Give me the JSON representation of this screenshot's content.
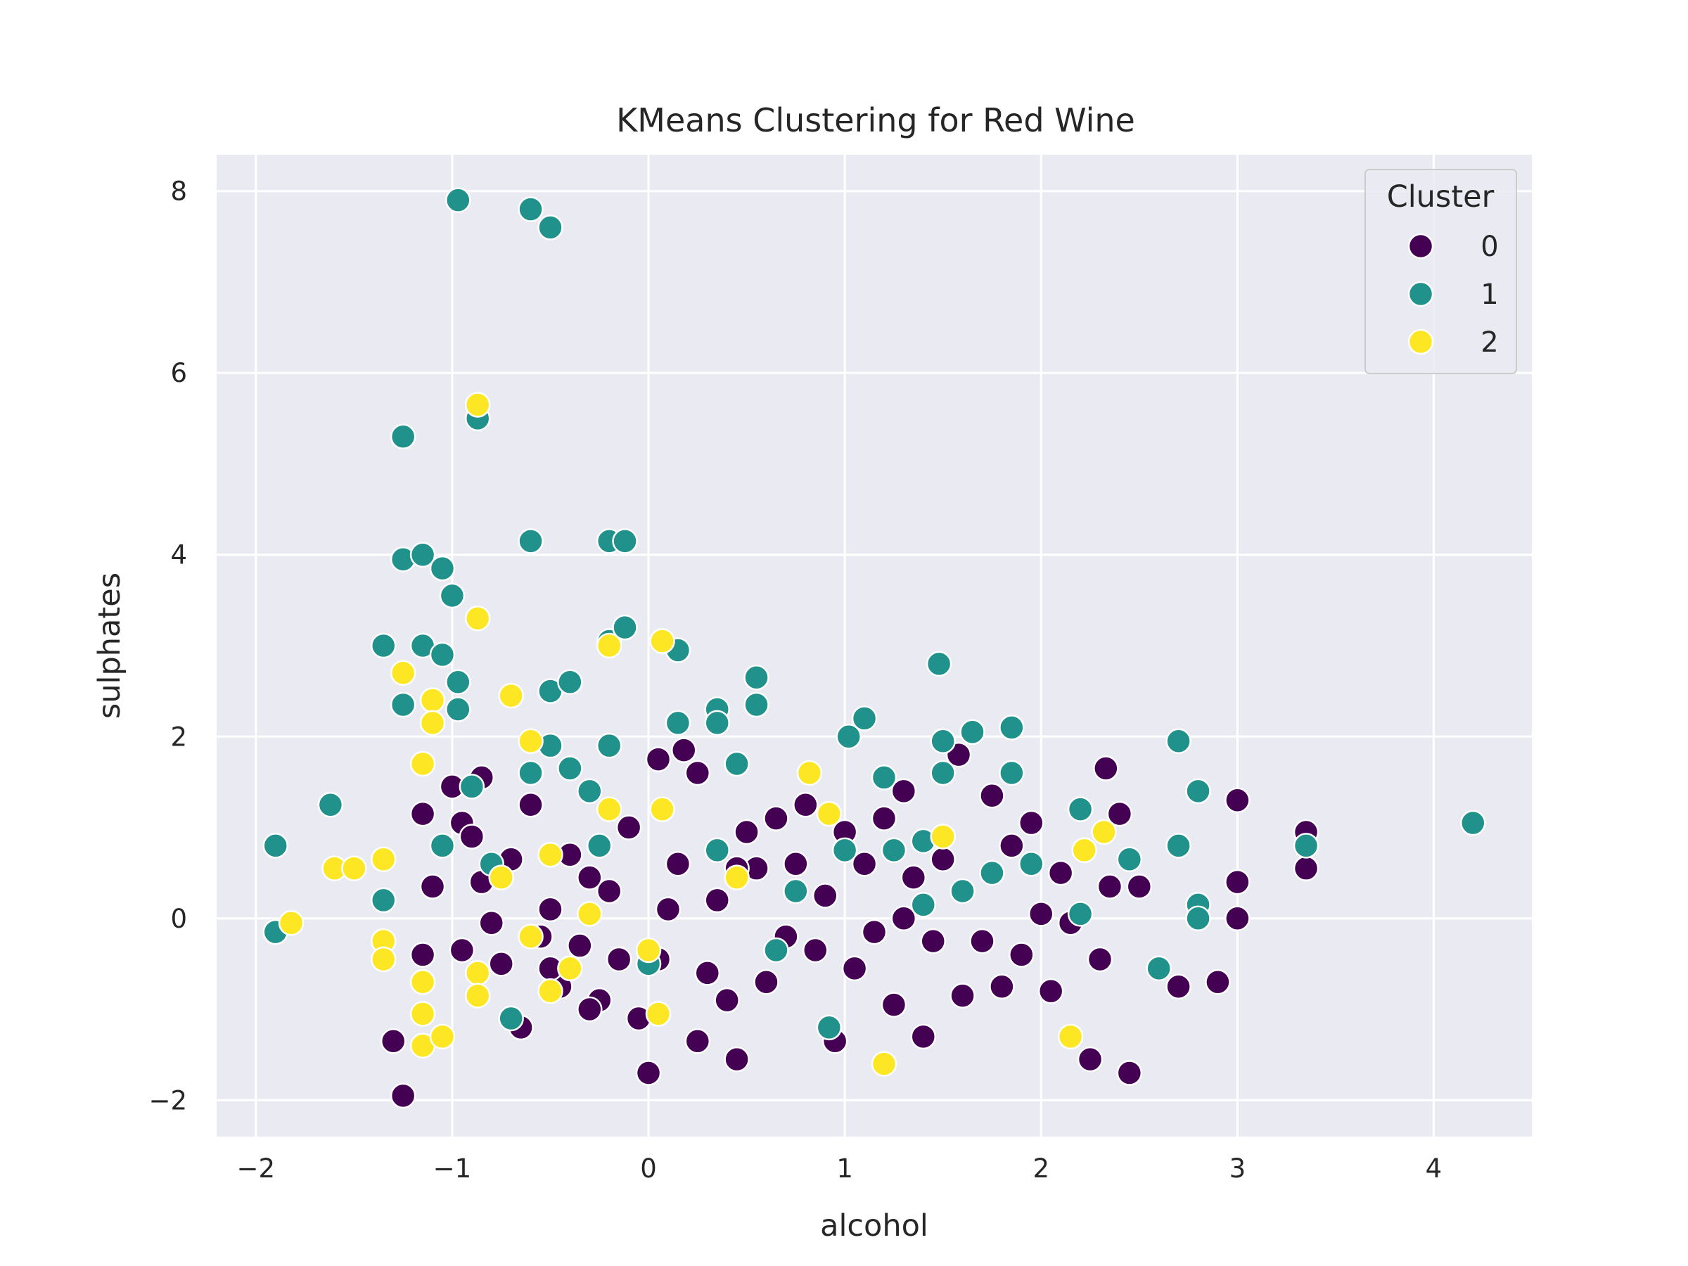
{
  "chart_data": {
    "type": "scatter",
    "title": "KMeans Clustering for Red Wine",
    "xlabel": "alcohol",
    "ylabel": "sulphates",
    "xlim": [
      -2.2,
      4.5
    ],
    "ylim": [
      -2.4,
      8.4
    ],
    "xticks": [
      -2,
      -1,
      0,
      1,
      2,
      3,
      4
    ],
    "yticks": [
      -2,
      0,
      2,
      4,
      6,
      8
    ],
    "xtick_labels": [
      "−2",
      "−1",
      "0",
      "1",
      "2",
      "3",
      "4"
    ],
    "ytick_labels": [
      "−2",
      "0",
      "2",
      "4",
      "6",
      "8"
    ],
    "grid": true,
    "legend": {
      "title": "Cluster",
      "position": "top-right"
    },
    "series": [
      {
        "name": "0",
        "color": "#440154",
        "points": [
          [
            -1.25,
            -1.95
          ],
          [
            -1.3,
            -1.35
          ],
          [
            -1.15,
            -0.4
          ],
          [
            -1.1,
            0.35
          ],
          [
            -1.15,
            1.15
          ],
          [
            -1.0,
            1.45
          ],
          [
            -0.95,
            1.05
          ],
          [
            -0.9,
            0.9
          ],
          [
            -0.85,
            1.55
          ],
          [
            -0.8,
            -0.05
          ],
          [
            -0.75,
            -0.5
          ],
          [
            -0.7,
            0.65
          ],
          [
            -0.6,
            1.25
          ],
          [
            -0.55,
            -0.2
          ],
          [
            -0.5,
            0.1
          ],
          [
            -0.45,
            -0.75
          ],
          [
            -0.4,
            0.7
          ],
          [
            -0.35,
            -0.3
          ],
          [
            -0.3,
            0.45
          ],
          [
            -0.25,
            -0.9
          ],
          [
            -0.2,
            0.3
          ],
          [
            -0.15,
            -0.45
          ],
          [
            -0.1,
            1.0
          ],
          [
            -0.05,
            -1.1
          ],
          [
            0.0,
            -1.7
          ],
          [
            0.05,
            -0.45
          ],
          [
            0.05,
            1.75
          ],
          [
            0.1,
            0.1
          ],
          [
            0.15,
            0.6
          ],
          [
            0.18,
            1.85
          ],
          [
            0.25,
            1.6
          ],
          [
            0.25,
            -1.35
          ],
          [
            0.3,
            -0.6
          ],
          [
            0.35,
            0.2
          ],
          [
            0.4,
            -0.9
          ],
          [
            0.45,
            -1.55
          ],
          [
            0.5,
            0.95
          ],
          [
            0.55,
            0.55
          ],
          [
            0.6,
            -0.7
          ],
          [
            0.65,
            1.1
          ],
          [
            0.7,
            -0.2
          ],
          [
            0.75,
            0.6
          ],
          [
            0.8,
            1.25
          ],
          [
            0.85,
            -0.35
          ],
          [
            0.9,
            0.25
          ],
          [
            0.95,
            -1.35
          ],
          [
            1.0,
            0.95
          ],
          [
            1.05,
            -0.55
          ],
          [
            1.1,
            0.6
          ],
          [
            1.15,
            -0.15
          ],
          [
            1.2,
            1.1
          ],
          [
            1.25,
            -0.95
          ],
          [
            1.3,
            1.4
          ],
          [
            1.35,
            0.45
          ],
          [
            1.4,
            -1.3
          ],
          [
            1.45,
            -0.25
          ],
          [
            1.5,
            0.65
          ],
          [
            1.58,
            1.8
          ],
          [
            1.6,
            -0.85
          ],
          [
            1.7,
            -0.25
          ],
          [
            1.75,
            1.35
          ],
          [
            1.8,
            -0.75
          ],
          [
            1.85,
            0.8
          ],
          [
            1.9,
            -0.4
          ],
          [
            1.95,
            1.05
          ],
          [
            2.0,
            0.05
          ],
          [
            2.05,
            -0.8
          ],
          [
            2.1,
            0.5
          ],
          [
            2.15,
            -0.05
          ],
          [
            2.25,
            -1.55
          ],
          [
            2.3,
            -0.45
          ],
          [
            2.33,
            1.65
          ],
          [
            2.35,
            0.35
          ],
          [
            2.4,
            1.15
          ],
          [
            2.45,
            -1.7
          ],
          [
            2.5,
            0.35
          ],
          [
            2.7,
            -0.75
          ],
          [
            2.9,
            -0.7
          ],
          [
            3.0,
            1.3
          ],
          [
            3.0,
            0.4
          ],
          [
            3.0,
            0.0
          ],
          [
            3.35,
            0.95
          ],
          [
            3.35,
            0.55
          ],
          [
            -0.85,
            0.4
          ],
          [
            -0.65,
            -1.2
          ],
          [
            -0.5,
            -0.55
          ],
          [
            -0.95,
            -0.35
          ],
          [
            -0.3,
            -1.0
          ],
          [
            0.45,
            0.55
          ],
          [
            1.3,
            0.0
          ]
        ]
      },
      {
        "name": "1",
        "color": "#21918c",
        "points": [
          [
            -0.97,
            7.9
          ],
          [
            -0.6,
            7.8
          ],
          [
            -0.5,
            7.6
          ],
          [
            -1.25,
            5.3
          ],
          [
            -0.87,
            5.5
          ],
          [
            -0.6,
            4.15
          ],
          [
            -0.2,
            4.15
          ],
          [
            -0.12,
            4.15
          ],
          [
            -1.25,
            3.95
          ],
          [
            -1.15,
            4.0
          ],
          [
            -1.05,
            3.85
          ],
          [
            -1.0,
            3.55
          ],
          [
            -1.35,
            3.0
          ],
          [
            -1.15,
            3.0
          ],
          [
            -1.05,
            2.9
          ],
          [
            -0.97,
            2.6
          ],
          [
            -0.97,
            2.3
          ],
          [
            -1.25,
            2.35
          ],
          [
            -0.2,
            3.05
          ],
          [
            -0.12,
            3.2
          ],
          [
            0.15,
            2.95
          ],
          [
            -0.5,
            2.5
          ],
          [
            -0.4,
            2.6
          ],
          [
            0.55,
            2.65
          ],
          [
            0.55,
            2.35
          ],
          [
            0.35,
            2.3
          ],
          [
            0.35,
            2.15
          ],
          [
            0.15,
            2.15
          ],
          [
            -0.2,
            1.9
          ],
          [
            -0.5,
            1.9
          ],
          [
            -0.6,
            1.6
          ],
          [
            -0.4,
            1.65
          ],
          [
            -0.3,
            1.4
          ],
          [
            1.48,
            2.8
          ],
          [
            1.65,
            2.05
          ],
          [
            1.85,
            2.1
          ],
          [
            1.1,
            2.2
          ],
          [
            1.02,
            2.0
          ],
          [
            1.5,
            1.95
          ],
          [
            2.7,
            1.95
          ],
          [
            2.8,
            1.4
          ],
          [
            1.2,
            1.55
          ],
          [
            1.5,
            1.6
          ],
          [
            1.85,
            1.6
          ],
          [
            -1.62,
            1.25
          ],
          [
            -1.9,
            0.8
          ],
          [
            -1.9,
            -0.15
          ],
          [
            -0.9,
            1.45
          ],
          [
            0.45,
            1.7
          ],
          [
            0.35,
            0.75
          ],
          [
            0.75,
            0.3
          ],
          [
            1.0,
            0.75
          ],
          [
            1.4,
            0.85
          ],
          [
            1.4,
            0.15
          ],
          [
            1.6,
            0.3
          ],
          [
            1.95,
            0.6
          ],
          [
            2.2,
            1.2
          ],
          [
            2.45,
            0.65
          ],
          [
            2.6,
            -0.55
          ],
          [
            2.7,
            0.8
          ],
          [
            2.8,
            0.15
          ],
          [
            2.8,
            0.0
          ],
          [
            4.2,
            1.05
          ],
          [
            3.35,
            0.8
          ],
          [
            0.92,
            -1.2
          ],
          [
            -0.7,
            -1.1
          ],
          [
            -1.35,
            0.2
          ],
          [
            -1.05,
            0.8
          ],
          [
            -0.25,
            0.8
          ],
          [
            0.65,
            -0.35
          ],
          [
            1.25,
            0.75
          ],
          [
            1.75,
            0.5
          ],
          [
            0.0,
            -0.5
          ],
          [
            -0.8,
            0.6
          ],
          [
            2.2,
            0.05
          ]
        ]
      },
      {
        "name": "2",
        "color": "#fde725",
        "points": [
          [
            -0.87,
            5.65
          ],
          [
            -0.87,
            3.3
          ],
          [
            -0.7,
            2.45
          ],
          [
            -1.25,
            2.7
          ],
          [
            -1.1,
            2.4
          ],
          [
            -1.1,
            2.15
          ],
          [
            -1.15,
            1.7
          ],
          [
            -0.6,
            1.95
          ],
          [
            0.07,
            3.05
          ],
          [
            -0.2,
            3.0
          ],
          [
            0.07,
            1.2
          ],
          [
            -0.2,
            1.2
          ],
          [
            -0.5,
            0.7
          ],
          [
            -1.82,
            -0.05
          ],
          [
            -1.6,
            0.55
          ],
          [
            -1.5,
            0.55
          ],
          [
            -1.35,
            0.65
          ],
          [
            -1.35,
            -0.25
          ],
          [
            -1.35,
            -0.45
          ],
          [
            -1.15,
            -0.7
          ],
          [
            -1.15,
            -1.05
          ],
          [
            -1.15,
            -1.4
          ],
          [
            -1.05,
            -1.3
          ],
          [
            -0.87,
            -0.6
          ],
          [
            -0.87,
            -0.85
          ],
          [
            -0.6,
            -0.2
          ],
          [
            -0.5,
            -0.8
          ],
          [
            -0.3,
            0.05
          ],
          [
            0.05,
            -1.05
          ],
          [
            0.0,
            -0.35
          ],
          [
            0.82,
            1.6
          ],
          [
            0.92,
            1.15
          ],
          [
            1.2,
            -1.6
          ],
          [
            2.15,
            -1.3
          ],
          [
            2.22,
            0.75
          ],
          [
            2.32,
            0.95
          ],
          [
            1.5,
            0.9
          ],
          [
            0.45,
            0.45
          ],
          [
            -0.4,
            -0.55
          ],
          [
            -0.75,
            0.45
          ]
        ]
      }
    ]
  }
}
